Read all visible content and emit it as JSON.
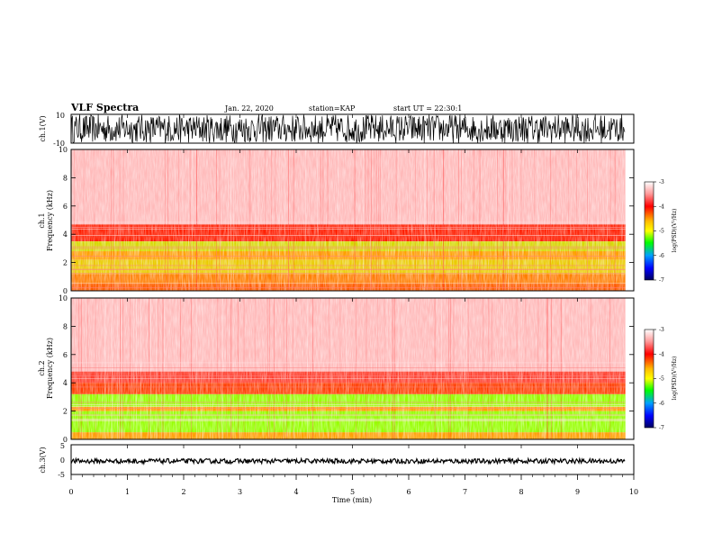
{
  "header": {
    "title": "VLF Spectra",
    "date": "Jan. 22, 2020",
    "station": "station=KAP",
    "start_ut": "start UT =  22:30:1"
  },
  "chart_data": [
    {
      "type": "line",
      "ylabel": "ch.1(V)",
      "ylim": [
        -10,
        10
      ],
      "yticks": [
        "10",
        "-10"
      ],
      "xlim": [
        0,
        10
      ],
      "description_free": true,
      "signal": {
        "min": -10,
        "max": 10,
        "color": "#000000"
      }
    },
    {
      "type": "heatmap",
      "ylabel": "ch.1\nFrequency (kHz)",
      "ylabel_lines": [
        "ch.1",
        "Frequency (kHz)"
      ],
      "ylim": [
        0,
        10
      ],
      "yticks": [
        "0",
        "2",
        "4",
        "6",
        "8",
        "10"
      ],
      "xlim": [
        0,
        9.85
      ],
      "colorbar": {
        "label": "log(PSD)(V²/Hz)",
        "range": [
          -7,
          -3
        ],
        "ticks": [
          "-3",
          "-4",
          "-5",
          "-6",
          "-7"
        ]
      },
      "bands": [
        {
          "from": 0,
          "to": 0.5,
          "level": -4.2
        },
        {
          "from": 0.5,
          "to": 1.2,
          "level": -4.3
        },
        {
          "from": 1.2,
          "to": 2.2,
          "level": -4.6
        },
        {
          "from": 2.2,
          "to": 2.8,
          "level": -4.4
        },
        {
          "from": 2.8,
          "to": 3.5,
          "level": -4.7
        },
        {
          "from": 3.5,
          "to": 4.7,
          "level": -4.0
        },
        {
          "from": 4.7,
          "to": 10,
          "level": -3.2
        }
      ]
    },
    {
      "type": "heatmap",
      "ylabel": "ch.2\nFrequency (kHz)",
      "ylabel_lines": [
        "ch.2",
        "Frequency (kHz)"
      ],
      "ylim": [
        0,
        10
      ],
      "yticks": [
        "0",
        "2",
        "4",
        "6",
        "8",
        "10"
      ],
      "xlim": [
        0,
        9.85
      ],
      "colorbar": {
        "label": "log(PSD)(V²/Hz)",
        "range": [
          -7,
          -3
        ],
        "ticks": [
          "-3",
          "-4",
          "-5",
          "-6",
          "-7"
        ]
      },
      "bands": [
        {
          "from": 0,
          "to": 0.5,
          "level": -4.4
        },
        {
          "from": 0.5,
          "to": 2.0,
          "level": -5.0
        },
        {
          "from": 2.0,
          "to": 2.3,
          "level": -4.4
        },
        {
          "from": 2.3,
          "to": 3.2,
          "level": -5.0
        },
        {
          "from": 3.2,
          "to": 4.0,
          "level": -4.1
        },
        {
          "from": 4.0,
          "to": 4.8,
          "level": -3.8
        },
        {
          "from": 4.8,
          "to": 10,
          "level": -3.2
        }
      ]
    },
    {
      "type": "line",
      "ylabel": "ch.3(V)",
      "ylim": [
        -5,
        5
      ],
      "yticks": [
        "5",
        "0",
        "-5"
      ],
      "xlim": [
        0,
        10
      ],
      "xlabel": "Time (min)",
      "xticks": [
        "0",
        "1",
        "2",
        "3",
        "4",
        "5",
        "6",
        "7",
        "8",
        "9",
        "10"
      ],
      "signal": {
        "min": -1.3,
        "max": 0.3,
        "color": "#000000"
      }
    }
  ]
}
